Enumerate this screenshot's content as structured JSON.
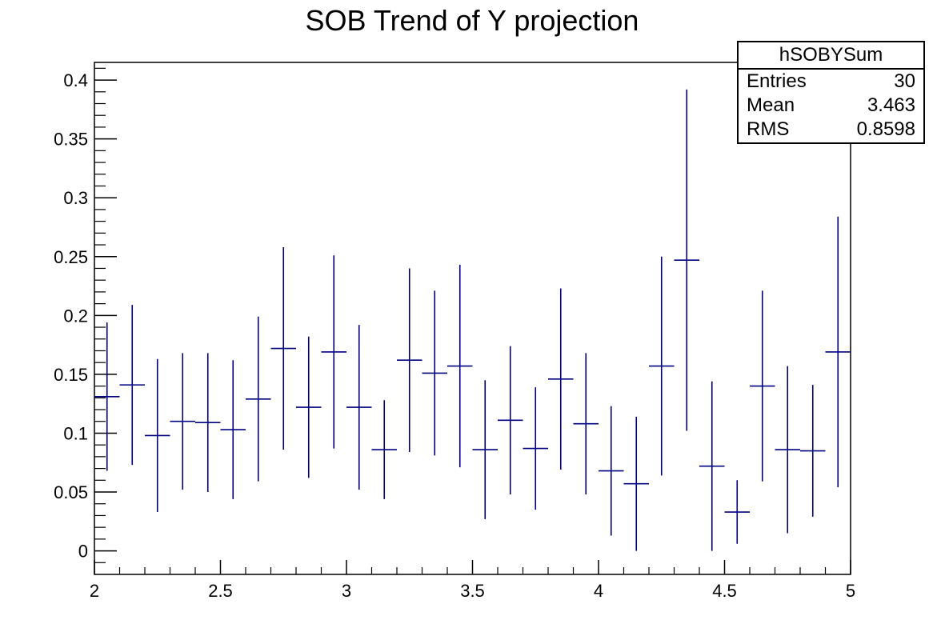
{
  "chart_data": {
    "type": "scatter",
    "title": "SOB Trend of Y projection",
    "xlabel": "",
    "ylabel": "",
    "xlim": [
      2,
      5
    ],
    "ylim": [
      -0.02,
      0.415
    ],
    "x_ticks": [
      "2",
      "2.5",
      "3",
      "3.5",
      "4",
      "4.5",
      "5"
    ],
    "y_ticks": [
      "0",
      "0.05",
      "0.1",
      "0.15",
      "0.2",
      "0.25",
      "0.3",
      "0.35",
      "0.4"
    ],
    "bin_width": 0.1,
    "color": "#000080",
    "series": [
      {
        "x": [
          2.05,
          2.15,
          2.25,
          2.35,
          2.45,
          2.55,
          2.65,
          2.75,
          2.85,
          2.95,
          3.05,
          3.15,
          3.25,
          3.35,
          3.45,
          3.55,
          3.65,
          3.75,
          3.85,
          3.95,
          4.05,
          4.15,
          4.25,
          4.35,
          4.45,
          4.55,
          4.65,
          4.75,
          4.85,
          4.95
        ],
        "y": [
          0.131,
          0.141,
          0.098,
          0.11,
          0.109,
          0.103,
          0.129,
          0.172,
          0.122,
          0.169,
          0.122,
          0.086,
          0.162,
          0.151,
          0.157,
          0.086,
          0.111,
          0.087,
          0.146,
          0.108,
          0.068,
          0.057,
          0.157,
          0.247,
          0.072,
          0.033,
          0.14,
          0.086,
          0.085,
          0.169
        ],
        "y_err": [
          0.063,
          0.068,
          0.065,
          0.058,
          0.059,
          0.059,
          0.07,
          0.086,
          0.06,
          0.082,
          0.07,
          0.042,
          0.078,
          0.07,
          0.086,
          0.059,
          0.063,
          0.052,
          0.077,
          0.06,
          0.055,
          0.057,
          0.093,
          0.145,
          0.072,
          0.027,
          0.081,
          0.071,
          0.056,
          0.115
        ]
      }
    ]
  },
  "stats": {
    "name": "hSOBYSum",
    "entries_label": "Entries",
    "entries_value": "30",
    "mean_label": "Mean",
    "mean_value": "3.463",
    "rms_label": "RMS",
    "rms_value": "0.8598"
  }
}
